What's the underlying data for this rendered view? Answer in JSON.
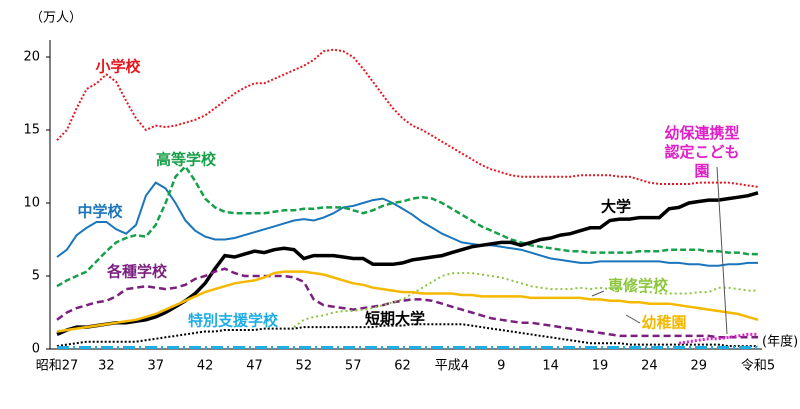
{
  "chart_data": {
    "type": "line",
    "y_label": "（万人）",
    "x_label": "(年度)",
    "ylim": [
      0,
      20.5
    ],
    "yticks": [
      0,
      5,
      10,
      15,
      20
    ],
    "categories": [
      "昭和27",
      null,
      null,
      null,
      null,
      "32",
      null,
      null,
      null,
      null,
      "37",
      null,
      null,
      null,
      null,
      "42",
      null,
      null,
      null,
      null,
      "47",
      null,
      null,
      null,
      null,
      "52",
      null,
      null,
      null,
      null,
      "57",
      null,
      null,
      null,
      null,
      "62",
      null,
      null,
      null,
      null,
      "平成4",
      null,
      null,
      null,
      null,
      "9",
      null,
      null,
      null,
      null,
      "14",
      null,
      null,
      null,
      null,
      "19",
      null,
      null,
      null,
      null,
      "24",
      null,
      null,
      null,
      null,
      "29",
      null,
      null,
      null,
      null,
      null,
      "令和5"
    ],
    "series": [
      {
        "name": "小学校",
        "color": "#e8141c",
        "values": [
          14.3,
          15.0,
          16.5,
          17.8,
          18.2,
          18.8,
          18.3,
          17.0,
          15.8,
          15.0,
          15.3,
          15.2,
          15.3,
          15.5,
          15.7,
          16.0,
          16.5,
          17.0,
          17.5,
          17.9,
          18.2,
          18.2,
          18.5,
          18.8,
          19.1,
          19.4,
          19.8,
          20.4,
          20.5,
          20.4,
          20.0,
          19.2,
          18.3,
          17.4,
          16.5,
          15.8,
          15.3,
          15.0,
          14.6,
          14.2,
          13.8,
          13.4,
          13.0,
          12.6,
          12.3,
          12.1,
          11.9,
          11.8,
          11.8,
          11.8,
          11.8,
          11.8,
          11.8,
          11.9,
          11.9,
          11.9,
          11.9,
          11.8,
          11.8,
          11.6,
          11.4,
          11.3,
          11.3,
          11.3,
          11.3,
          11.4,
          11.4,
          11.4,
          11.4,
          11.3,
          11.2,
          11.1
        ]
      },
      {
        "name": "中学校",
        "color": "#1a75bc",
        "values": [
          6.3,
          6.8,
          7.8,
          8.3,
          8.7,
          8.7,
          8.2,
          7.9,
          8.5,
          10.5,
          11.4,
          11.0,
          10.0,
          8.8,
          8.1,
          7.7,
          7.5,
          7.5,
          7.6,
          7.8,
          8.0,
          8.2,
          8.4,
          8.6,
          8.8,
          8.9,
          8.8,
          9.0,
          9.3,
          9.7,
          9.8,
          10.0,
          10.2,
          10.3,
          10.0,
          9.6,
          9.2,
          8.7,
          8.3,
          7.9,
          7.6,
          7.3,
          7.2,
          7.1,
          7.1,
          7.0,
          6.9,
          6.8,
          6.6,
          6.4,
          6.2,
          6.1,
          6.0,
          5.9,
          5.9,
          6.0,
          6.0,
          6.0,
          6.0,
          6.0,
          6.0,
          6.0,
          5.9,
          5.9,
          5.8,
          5.8,
          5.7,
          5.7,
          5.8,
          5.8,
          5.9,
          5.9
        ]
      },
      {
        "name": "高等学校",
        "color": "#17a04a",
        "values": [
          4.3,
          4.7,
          5.0,
          5.3,
          6.0,
          6.7,
          7.3,
          7.6,
          7.8,
          7.7,
          8.5,
          10.0,
          11.8,
          12.5,
          11.5,
          10.3,
          9.7,
          9.4,
          9.3,
          9.3,
          9.3,
          9.3,
          9.4,
          9.5,
          9.5,
          9.6,
          9.6,
          9.7,
          9.7,
          9.7,
          9.5,
          9.3,
          9.5,
          9.8,
          10.0,
          10.1,
          10.3,
          10.4,
          10.3,
          10.0,
          9.6,
          9.2,
          8.8,
          8.4,
          8.1,
          7.8,
          7.5,
          7.3,
          7.1,
          7.0,
          6.9,
          6.8,
          6.7,
          6.7,
          6.6,
          6.6,
          6.6,
          6.6,
          6.6,
          6.7,
          6.7,
          6.7,
          6.8,
          6.8,
          6.8,
          6.8,
          6.7,
          6.7,
          6.6,
          6.6,
          6.5,
          6.5
        ]
      },
      {
        "name": "大学",
        "color": "#000000",
        "values": [
          1.0,
          1.3,
          1.5,
          1.5,
          1.6,
          1.7,
          1.8,
          1.8,
          1.9,
          2.0,
          2.2,
          2.5,
          2.9,
          3.3,
          3.8,
          4.5,
          5.5,
          6.4,
          6.3,
          6.5,
          6.7,
          6.6,
          6.8,
          6.9,
          6.8,
          6.2,
          6.4,
          6.4,
          6.4,
          6.3,
          6.2,
          6.2,
          5.8,
          5.8,
          5.8,
          5.9,
          6.1,
          6.2,
          6.3,
          6.4,
          6.6,
          6.8,
          7.0,
          7.1,
          7.2,
          7.3,
          7.3,
          7.1,
          7.3,
          7.5,
          7.6,
          7.8,
          7.9,
          8.1,
          8.3,
          8.3,
          8.8,
          8.9,
          8.9,
          9.0,
          9.0,
          9.0,
          9.6,
          9.7,
          10.0,
          10.1,
          10.2,
          10.2,
          10.3,
          10.4,
          10.5,
          10.7
        ]
      },
      {
        "name": "各種学校",
        "color": "#7b1f7f",
        "values": [
          2.0,
          2.5,
          2.8,
          3.0,
          3.2,
          3.3,
          3.6,
          4.1,
          4.2,
          4.3,
          4.2,
          4.1,
          4.2,
          4.4,
          4.8,
          5.0,
          5.3,
          5.5,
          5.2,
          5.0,
          5.0,
          5.0,
          5.0,
          5.0,
          4.9,
          4.6,
          3.4,
          3.0,
          2.9,
          2.8,
          2.7,
          2.8,
          2.9,
          3.0,
          3.2,
          3.3,
          3.4,
          3.4,
          3.3,
          3.1,
          2.9,
          2.7,
          2.5,
          2.3,
          2.1,
          2.0,
          1.9,
          1.8,
          1.8,
          1.7,
          1.6,
          1.5,
          1.4,
          1.3,
          1.2,
          1.1,
          1.0,
          0.9,
          0.9,
          0.9,
          0.9,
          0.9,
          0.9,
          0.9,
          0.9,
          0.9,
          0.9,
          0.8,
          0.8,
          0.8,
          0.8,
          0.8
        ]
      },
      {
        "name": "専修学校",
        "color": "#8cc63e",
        "values": [
          null,
          null,
          null,
          null,
          null,
          null,
          null,
          null,
          null,
          null,
          null,
          null,
          null,
          null,
          null,
          null,
          null,
          null,
          null,
          null,
          null,
          null,
          null,
          null,
          1.5,
          2.0,
          2.2,
          2.3,
          2.5,
          2.6,
          2.6,
          2.7,
          2.8,
          3.0,
          3.2,
          3.4,
          3.8,
          4.2,
          4.6,
          5.0,
          5.2,
          5.2,
          5.2,
          5.1,
          5.0,
          4.9,
          4.7,
          4.5,
          4.3,
          4.2,
          4.1,
          4.1,
          4.1,
          4.2,
          4.1,
          4.2,
          4.1,
          4.1,
          4.0,
          3.9,
          3.9,
          3.8,
          3.8,
          3.8,
          3.8,
          3.9,
          3.9,
          4.2,
          4.2,
          4.1,
          4.0,
          4.0
        ]
      },
      {
        "name": "幼稚園",
        "color": "#f5b800",
        "values": [
          1.2,
          1.3,
          1.4,
          1.5,
          1.6,
          1.7,
          1.8,
          1.9,
          2.0,
          2.2,
          2.4,
          2.7,
          3.0,
          3.3,
          3.6,
          3.9,
          4.1,
          4.3,
          4.5,
          4.6,
          4.7,
          4.9,
          5.2,
          5.3,
          5.3,
          5.3,
          5.2,
          5.1,
          4.9,
          4.7,
          4.5,
          4.4,
          4.2,
          4.1,
          4.0,
          3.9,
          3.9,
          3.8,
          3.8,
          3.8,
          3.8,
          3.7,
          3.7,
          3.6,
          3.6,
          3.6,
          3.6,
          3.6,
          3.5,
          3.5,
          3.5,
          3.5,
          3.5,
          3.5,
          3.4,
          3.4,
          3.3,
          3.3,
          3.2,
          3.2,
          3.1,
          3.1,
          3.1,
          3.0,
          2.9,
          2.8,
          2.7,
          2.6,
          2.5,
          2.4,
          2.2,
          2.0
        ]
      },
      {
        "name": "短期大学",
        "color": "#000000",
        "values": [
          0.2,
          0.3,
          0.4,
          0.5,
          0.5,
          0.5,
          0.5,
          0.5,
          0.5,
          0.6,
          0.7,
          0.8,
          0.9,
          1.0,
          1.1,
          1.2,
          1.2,
          1.3,
          1.3,
          1.3,
          1.3,
          1.4,
          1.4,
          1.4,
          1.4,
          1.5,
          1.5,
          1.5,
          1.5,
          1.5,
          1.5,
          1.5,
          1.5,
          1.6,
          1.6,
          1.6,
          1.7,
          1.7,
          1.7,
          1.7,
          1.7,
          1.7,
          1.6,
          1.5,
          1.4,
          1.3,
          1.2,
          1.1,
          1.0,
          0.9,
          0.8,
          0.7,
          0.6,
          0.5,
          0.4,
          0.4,
          0.4,
          0.4,
          0.3,
          0.3,
          0.3,
          0.3,
          0.3,
          0.3,
          0.3,
          0.3,
          0.3,
          0.3,
          0.2,
          0.2,
          0.2,
          0.2
        ]
      },
      {
        "name": "特別支援学校",
        "color": "#1eaee6",
        "values": [
          0.1,
          0.1,
          0.1,
          0.1,
          0.1,
          0.1,
          0.1,
          0.1,
          0.1,
          0.1,
          0.1,
          0.1,
          0.1,
          0.1,
          0.1,
          0.1,
          0.1,
          0.1,
          0.1,
          0.1,
          0.1,
          0.1,
          0.1,
          0.1,
          0.1,
          0.1,
          0.1,
          0.1,
          0.1,
          0.1,
          0.1,
          0.1,
          0.1,
          0.1,
          0.1,
          0.1,
          0.1,
          0.1,
          0.1,
          0.1,
          0.1,
          0.1,
          0.1,
          0.1,
          0.1,
          0.1,
          0.1,
          0.1,
          0.1,
          0.1,
          0.1,
          0.1,
          0.1,
          0.1,
          0.1,
          0.1,
          0.1,
          0.1,
          0.1,
          0.1,
          0.1,
          0.1,
          0.1,
          0.1,
          0.1,
          0.1,
          0.1,
          0.1,
          0.1,
          0.1,
          0.1,
          0.1
        ]
      },
      {
        "name": "幼保連携型認定こども園",
        "color": "#e020c8",
        "values": [
          null,
          null,
          null,
          null,
          null,
          null,
          null,
          null,
          null,
          null,
          null,
          null,
          null,
          null,
          null,
          null,
          null,
          null,
          null,
          null,
          null,
          null,
          null,
          null,
          null,
          null,
          null,
          null,
          null,
          null,
          null,
          null,
          null,
          null,
          null,
          null,
          null,
          null,
          null,
          null,
          null,
          null,
          null,
          null,
          null,
          null,
          null,
          null,
          null,
          null,
          null,
          null,
          null,
          null,
          null,
          null,
          null,
          null,
          null,
          null,
          null,
          null,
          null,
          0.4,
          0.5,
          0.6,
          0.7,
          0.7,
          0.8,
          0.9,
          1.0,
          1.0
        ]
      }
    ]
  }
}
